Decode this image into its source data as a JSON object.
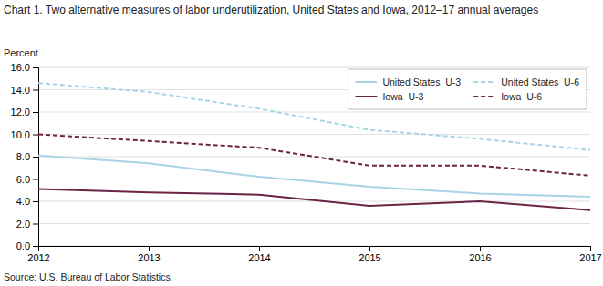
{
  "chart_data": {
    "type": "line",
    "title": "Chart 1. Two alternative measures of labor underutilization, United States and Iowa, 2012–17 annual averages",
    "y_label": "Percent",
    "source": "Source: U.S. Bureau of Labor Statistics.",
    "x": [
      2012,
      2013,
      2014,
      2015,
      2016,
      2017
    ],
    "xlim": [
      2012,
      2017
    ],
    "xticks": [
      2012,
      2013,
      2014,
      2015,
      2016,
      2017
    ],
    "ylim": [
      0.0,
      16.0
    ],
    "yticks": [
      {
        "value": 0.0,
        "label": "0.0"
      },
      {
        "value": 2.0,
        "label": "2.0"
      },
      {
        "value": 4.0,
        "label": "4.0"
      },
      {
        "value": 6.0,
        "label": "6.0"
      },
      {
        "value": 8.0,
        "label": "8.0"
      },
      {
        "value": 10.0,
        "label": "10.0"
      },
      {
        "value": 12.0,
        "label": "12.0"
      },
      {
        "value": 14.0,
        "label": "14.0"
      },
      {
        "value": 16.0,
        "label": "16.0"
      }
    ],
    "grid": true,
    "legend": "upper right",
    "series": [
      {
        "name": "United States  U-3",
        "color": "#a8d4e6",
        "line_style": "solid",
        "values": [
          8.1,
          7.4,
          6.2,
          5.3,
          4.7,
          4.4
        ]
      },
      {
        "name": "United States  U-6",
        "color": "#a8d4e6",
        "line_style": "dashed",
        "values": [
          14.6,
          13.8,
          12.3,
          10.4,
          9.6,
          8.6
        ]
      },
      {
        "name": "Iowa  U-3",
        "color": "#6b2346",
        "line_style": "solid",
        "values": [
          5.1,
          4.8,
          4.6,
          3.6,
          4.0,
          3.2
        ]
      },
      {
        "name": "Iowa  U-6",
        "color": "#6b2346",
        "line_style": "dashed",
        "values": [
          10.0,
          9.4,
          8.8,
          7.2,
          7.2,
          6.3
        ]
      }
    ]
  }
}
